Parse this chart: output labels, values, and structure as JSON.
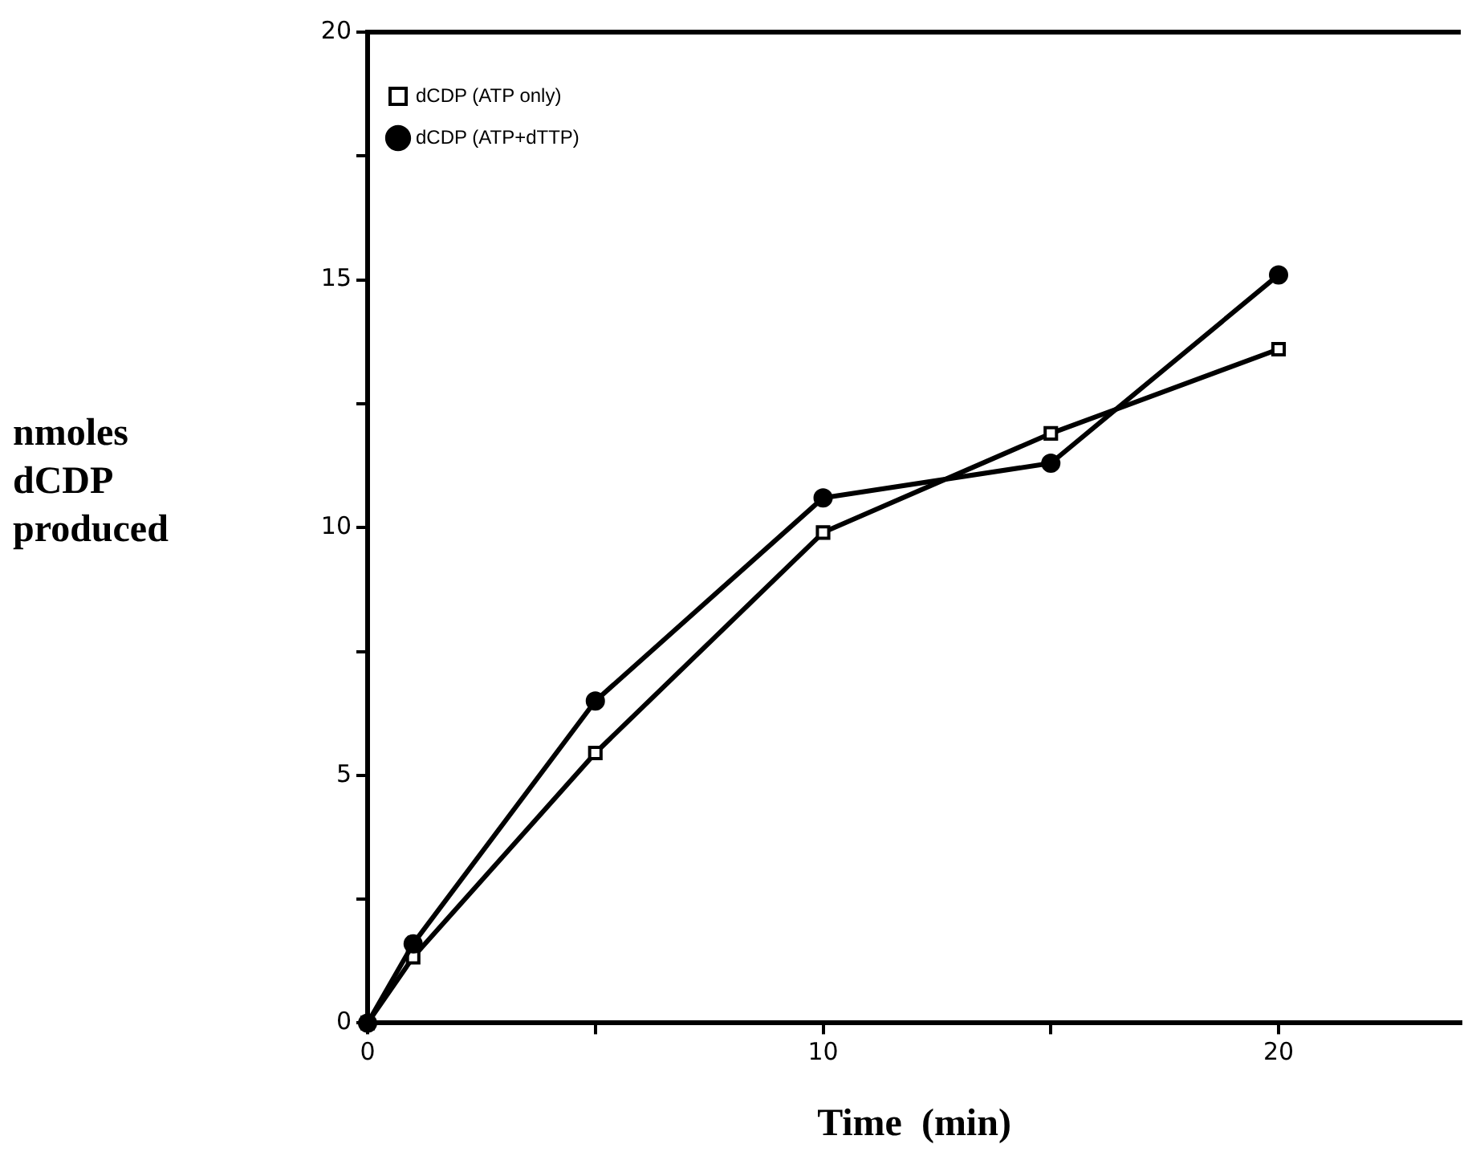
{
  "chart_data": {
    "type": "line",
    "xlabel": "Time  (min)",
    "ylabel": "nmoles dCDP produced",
    "x": [
      0,
      1,
      5,
      10,
      15,
      20
    ],
    "series": [
      {
        "name": "dCDP (ATP only)",
        "color": "#000000",
        "marker": "square",
        "values": [
          0,
          1.33,
          5.45,
          9.9,
          11.9,
          13.6
        ]
      },
      {
        "name": "dCDP (ATP+dTTP)",
        "color": "#000000",
        "marker": "circle",
        "values": [
          0,
          1.6,
          6.5,
          10.6,
          11.3,
          15.1
        ]
      }
    ],
    "xlim": [
      0,
      24
    ],
    "xticks": [
      0,
      {
        "value": 5,
        "label": null
      },
      10,
      {
        "value": 15,
        "label": null
      },
      20
    ],
    "ylim": [
      0,
      20
    ],
    "yticks": [
      0,
      {
        "value": 2.5,
        "label": null
      },
      5,
      {
        "value": 7.5,
        "label": null
      },
      10,
      {
        "value": 12.5,
        "label": null
      },
      15,
      {
        "value": 17.5,
        "label": null
      },
      20
    ],
    "grid": false,
    "legend": "top left",
    "line_style": "solid"
  }
}
